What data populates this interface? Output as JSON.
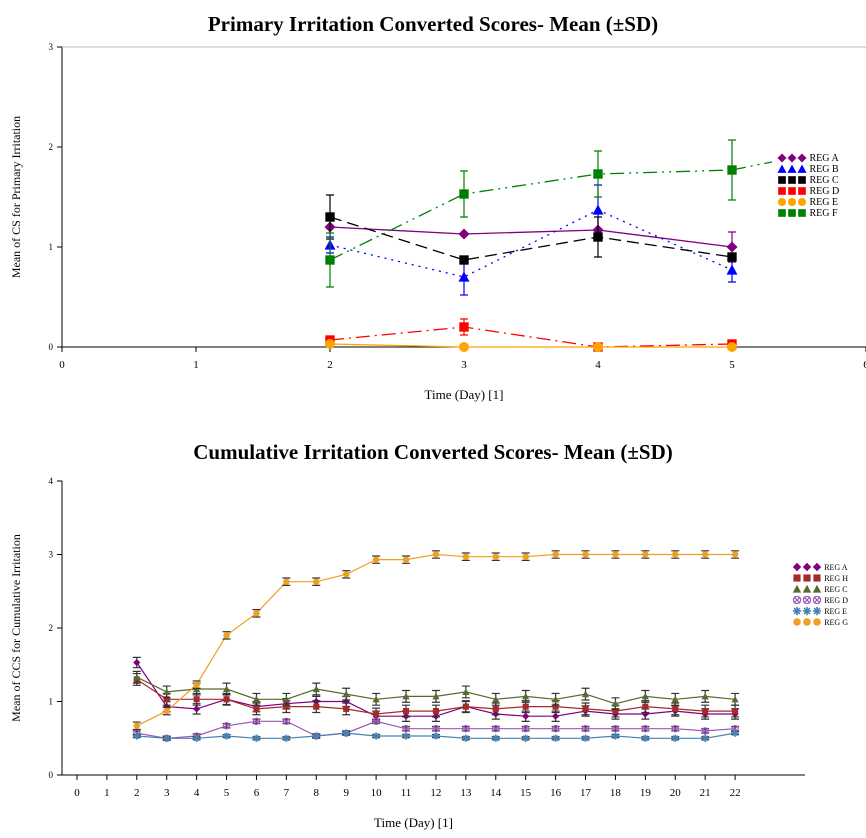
{
  "chart_data": [
    {
      "type": "line",
      "title": "Primary Irritation Converted Scores- Mean (±SD)",
      "xlabel": "Time (Day) [1]",
      "ylabel": "Mean of CS for Primary Irritation",
      "xlim": [
        0,
        6
      ],
      "ylim": [
        0,
        3
      ],
      "x_ticks": [
        0,
        1,
        2,
        3,
        4,
        5,
        6
      ],
      "y_ticks": [
        0,
        1,
        2,
        3
      ],
      "x": [
        2,
        3,
        4,
        5
      ],
      "legend_position": "right",
      "series": [
        {
          "name": "REG A",
          "marker": "diamond",
          "color": "#800080",
          "dash": "solid",
          "values": [
            1.2,
            1.13,
            1.17,
            1.0
          ],
          "sd": [
            0.0,
            0.0,
            0.0,
            0.15
          ]
        },
        {
          "name": "REG B",
          "marker": "triangle",
          "color": "#0000ff",
          "dash": "dot",
          "values": [
            1.02,
            0.7,
            1.37,
            0.77
          ],
          "sd": [
            0.08,
            0.18,
            0.25,
            0.12
          ]
        },
        {
          "name": "REG C",
          "marker": "square",
          "color": "#000000",
          "dash": "longdash",
          "values": [
            1.3,
            0.87,
            1.1,
            0.9
          ],
          "sd": [
            0.22,
            0.0,
            0.2,
            0.0
          ]
        },
        {
          "name": "REG D",
          "marker": "square",
          "color": "#ff0000",
          "dash": "dashdot",
          "values": [
            0.07,
            0.2,
            0.0,
            0.03
          ],
          "sd": [
            0.0,
            0.08,
            0.0,
            0.0
          ]
        },
        {
          "name": "REG E",
          "marker": "circle",
          "color": "#ffa500",
          "dash": "solid",
          "values": [
            0.03,
            0.0,
            0.0,
            0.0
          ],
          "sd": [
            0.0,
            0.0,
            0.0,
            0.0
          ]
        },
        {
          "name": "REG F",
          "marker": "square",
          "color": "#008000",
          "dash": "dashdotdot",
          "values": [
            0.87,
            1.53,
            1.73,
            1.77
          ],
          "sd": [
            0.27,
            0.23,
            0.23,
            0.3
          ]
        }
      ]
    },
    {
      "type": "line",
      "title": "Cumulative Irritation Converted Scores- Mean (±SD)",
      "xlabel": "Time (Day) [1]",
      "ylabel": "Mean of CCS for Cumulative Irritation",
      "xlim": [
        -0.5,
        23
      ],
      "ylim": [
        0,
        4
      ],
      "x_ticks": [
        0,
        1,
        2,
        3,
        4,
        5,
        6,
        7,
        8,
        9,
        10,
        11,
        12,
        13,
        14,
        15,
        16,
        17,
        18,
        19,
        20,
        21,
        22
      ],
      "y_ticks": [
        0,
        1,
        2,
        3,
        4
      ],
      "x": [
        2,
        3,
        4,
        5,
        6,
        7,
        8,
        9,
        10,
        11,
        12,
        13,
        14,
        15,
        16,
        17,
        18,
        19,
        20,
        21,
        22
      ],
      "legend_position": "right",
      "series": [
        {
          "name": "REG A",
          "marker": "diamond",
          "color": "#800080",
          "values": [
            1.53,
            0.93,
            0.9,
            1.03,
            0.93,
            0.97,
            1.0,
            1.0,
            0.8,
            0.8,
            0.8,
            0.93,
            0.83,
            0.8,
            0.8,
            0.87,
            0.83,
            0.83,
            0.87,
            0.83,
            0.83
          ],
          "sd": 0.07
        },
        {
          "name": "REG H",
          "marker": "square",
          "color": "#a52a2a",
          "values": [
            1.3,
            1.03,
            1.03,
            1.03,
            0.9,
            0.93,
            0.93,
            0.9,
            0.83,
            0.87,
            0.87,
            0.93,
            0.9,
            0.93,
            0.93,
            0.9,
            0.87,
            0.93,
            0.9,
            0.87,
            0.87
          ],
          "sd": 0.08
        },
        {
          "name": "REG C",
          "marker": "triangle",
          "color": "#556b2f",
          "values": [
            1.33,
            1.13,
            1.17,
            1.17,
            1.03,
            1.03,
            1.17,
            1.1,
            1.03,
            1.07,
            1.07,
            1.13,
            1.03,
            1.07,
            1.03,
            1.1,
            0.97,
            1.07,
            1.03,
            1.07,
            1.03
          ],
          "sd": 0.08
        },
        {
          "name": "REG D",
          "marker": "xcircle",
          "color": "#9b59b6",
          "values": [
            0.57,
            0.5,
            0.53,
            0.67,
            0.73,
            0.73,
            0.53,
            0.57,
            0.73,
            0.63,
            0.63,
            0.63,
            0.63,
            0.63,
            0.63,
            0.63,
            0.63,
            0.63,
            0.63,
            0.6,
            0.63
          ],
          "sd": 0.03
        },
        {
          "name": "REG E",
          "marker": "star",
          "color": "#4682b4",
          "values": [
            0.53,
            0.5,
            0.5,
            0.53,
            0.5,
            0.5,
            0.53,
            0.57,
            0.53,
            0.53,
            0.53,
            0.5,
            0.5,
            0.5,
            0.5,
            0.5,
            0.53,
            0.5,
            0.5,
            0.5,
            0.57
          ],
          "sd": 0.02
        },
        {
          "name": "REG G",
          "marker": "circle",
          "color": "#f0a020",
          "values": [
            0.67,
            0.87,
            1.23,
            1.9,
            2.2,
            2.63,
            2.63,
            2.73,
            2.93,
            2.93,
            3.0,
            2.97,
            2.97,
            2.97,
            3.0,
            3.0,
            3.0,
            3.0,
            3.0,
            3.0,
            3.0
          ],
          "sd": 0.05
        }
      ]
    }
  ]
}
